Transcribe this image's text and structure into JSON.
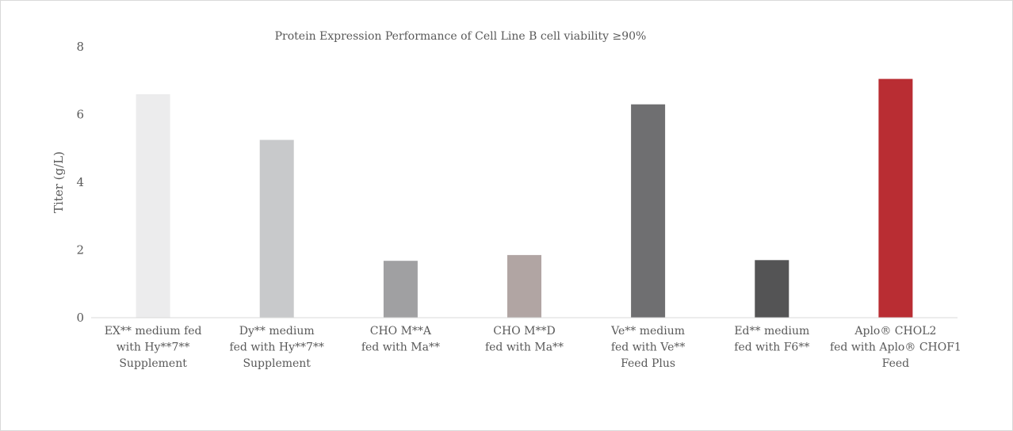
{
  "chart_data": {
    "type": "bar",
    "title": "Protein Expression Performance of Cell Line B cell viability ≥90%",
    "ylabel": "Titer (g/L)",
    "xlabel": "",
    "ylim": [
      0,
      8
    ],
    "yticks": [
      0,
      2,
      4,
      6,
      8
    ],
    "grid": false,
    "legend": "none",
    "categories": [
      [
        "EX** medium fed",
        "with Hy**7**",
        "Supplement"
      ],
      [
        "Dy** medium",
        "fed with Hy**7**",
        "Supplement"
      ],
      [
        "CHO M**A",
        "fed with Ma**"
      ],
      [
        "CHO M**D",
        "fed with Ma**"
      ],
      [
        "Ve** medium",
        "fed with Ve**",
        "Feed Plus"
      ],
      [
        "Ed** medium",
        "fed with F6**"
      ],
      [
        "Aplo® CHOL2",
        "fed with Aplo® CHOF1",
        "Feed"
      ]
    ],
    "values": [
      6.6,
      5.25,
      1.68,
      1.85,
      6.3,
      1.7,
      7.05
    ],
    "colors": [
      "#ececed",
      "#c8c9cb",
      "#a0a0a2",
      "#b1a5a3",
      "#6f6f71",
      "#545455",
      "#b92d33"
    ]
  }
}
